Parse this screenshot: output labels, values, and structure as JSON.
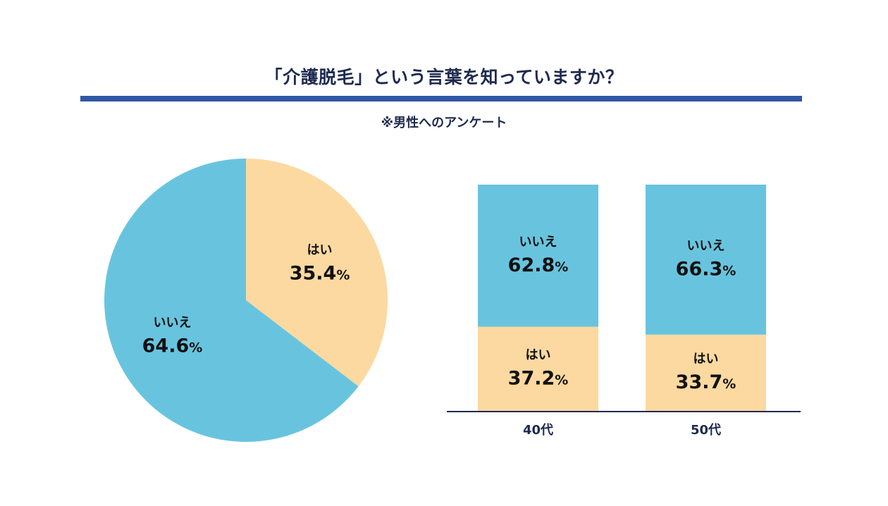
{
  "header": {
    "title": "「介護脱毛」という言葉を知っていますか？",
    "subtitle": "※男性へのアンケート"
  },
  "colors": {
    "yes": "#FCD9A0",
    "no": "#68C4DE",
    "rule": "#3057A6",
    "title_text": "#1E2A4F",
    "axis": "#1E2A4F"
  },
  "chart_data": [
    {
      "type": "pie",
      "title": "",
      "slices": [
        {
          "label": "はい",
          "value": 35.4,
          "display": "35.4",
          "unit": "%",
          "color": "#FCD9A0"
        },
        {
          "label": "いいえ",
          "value": 64.6,
          "display": "64.6",
          "unit": "%",
          "color": "#68C4DE"
        }
      ],
      "start": "12 o'clock",
      "direction": "clockwise"
    },
    {
      "type": "bar",
      "stacked": true,
      "normalized": true,
      "categories": [
        "40代",
        "50代"
      ],
      "series": [
        {
          "name": "はい",
          "values": [
            37.2,
            33.7
          ],
          "display": [
            "37.2",
            "33.7"
          ],
          "unit": "%",
          "color": "#FCD9A0"
        },
        {
          "name": "いいえ",
          "values": [
            62.8,
            66.3
          ],
          "display": [
            "62.8",
            "66.3"
          ],
          "unit": "%",
          "color": "#68C4DE"
        }
      ],
      "ylim": [
        0,
        100
      ],
      "grid": false,
      "legend": "none"
    }
  ]
}
